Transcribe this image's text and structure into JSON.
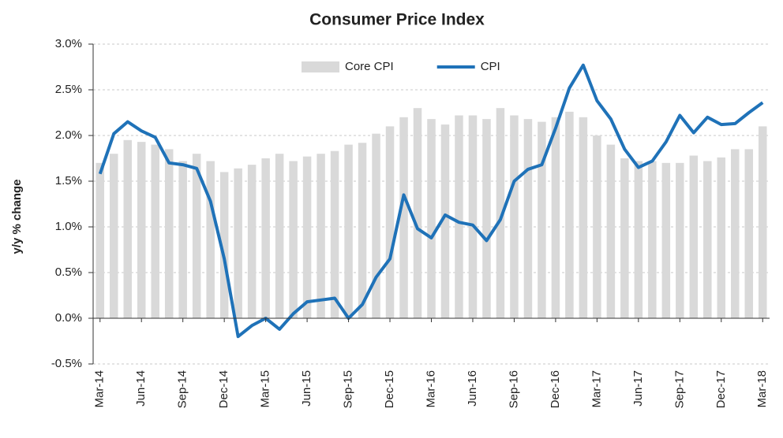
{
  "chart_data": {
    "type": "combo",
    "title": "Consumer  Price Index",
    "y_label": "y/y % change",
    "categories": [
      "Mar-14",
      null,
      null,
      "Jun-14",
      null,
      null,
      "Sep-14",
      null,
      null,
      "Dec-14",
      null,
      null,
      "Mar-15",
      null,
      null,
      "Jun-15",
      null,
      null,
      "Sep-15",
      null,
      null,
      "Dec-15",
      null,
      null,
      "Mar-16",
      null,
      null,
      "Jun-16",
      null,
      null,
      "Sep-16",
      null,
      null,
      "Dec-16",
      null,
      null,
      "Mar-17",
      null,
      null,
      "Jun-17",
      null,
      null,
      "Sep-17",
      null,
      null,
      "Dec-17",
      null,
      null,
      "Mar-18"
    ],
    "series": [
      {
        "name": "Core CPI",
        "type": "bar",
        "color": "#d9d9d9",
        "values": [
          1.7,
          1.8,
          1.95,
          1.93,
          1.9,
          1.85,
          1.72,
          1.8,
          1.72,
          1.6,
          1.64,
          1.68,
          1.75,
          1.8,
          1.72,
          1.77,
          1.8,
          1.83,
          1.9,
          1.92,
          2.02,
          2.1,
          2.2,
          2.3,
          2.18,
          2.12,
          2.22,
          2.22,
          2.18,
          2.3,
          2.22,
          2.18,
          2.15,
          2.2,
          2.26,
          2.2,
          2.0,
          1.9,
          1.75,
          1.72,
          1.72,
          1.7,
          1.7,
          1.78,
          1.72,
          1.76,
          1.85,
          1.85,
          2.1
        ]
      },
      {
        "name": "CPI",
        "type": "line",
        "color": "#1f72b8",
        "values": [
          1.58,
          2.02,
          2.15,
          2.05,
          1.98,
          1.7,
          1.68,
          1.64,
          1.28,
          0.65,
          -0.2,
          -0.08,
          0.0,
          -0.12,
          0.05,
          0.18,
          0.2,
          0.22,
          0.0,
          0.15,
          0.45,
          0.65,
          1.35,
          0.98,
          0.88,
          1.13,
          1.05,
          1.02,
          0.85,
          1.08,
          1.5,
          1.63,
          1.68,
          2.08,
          2.52,
          2.77,
          2.38,
          2.18,
          1.85,
          1.65,
          1.72,
          1.93,
          2.22,
          2.03,
          2.2,
          2.12,
          2.13,
          2.25,
          2.36
        ]
      }
    ],
    "ylim": [
      -0.5,
      3.0
    ],
    "yticks": [
      {
        "value": -0.5,
        "label": "-0.5%"
      },
      {
        "value": 0.0,
        "label": "0.0%"
      },
      {
        "value": 0.5,
        "label": "0.5%"
      },
      {
        "value": 1.0,
        "label": "1.0%"
      },
      {
        "value": 1.5,
        "label": "1.5%"
      },
      {
        "value": 2.0,
        "label": "2.0%"
      },
      {
        "value": 2.5,
        "label": "2.5%"
      },
      {
        "value": 3.0,
        "label": "3.0%"
      }
    ],
    "grid": true,
    "legend": "top"
  }
}
